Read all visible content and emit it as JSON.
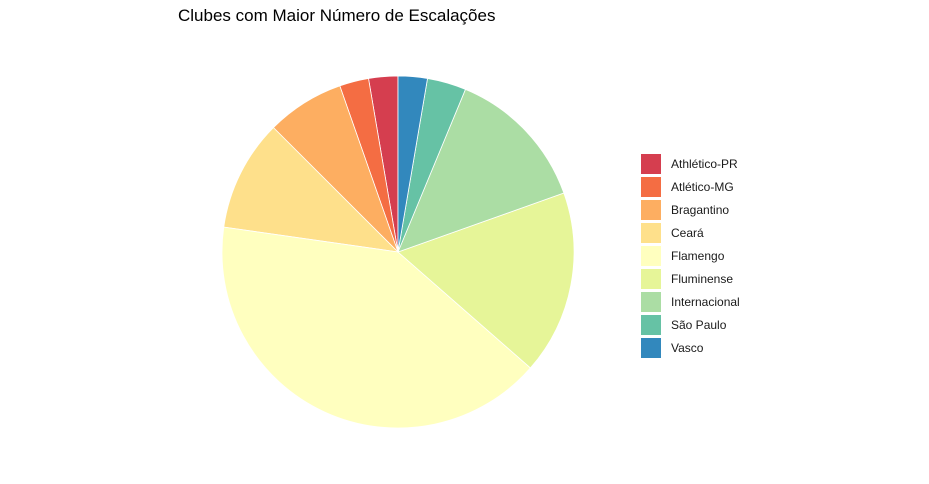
{
  "chart_data": {
    "type": "pie",
    "title": "Clubes com Maior Número de Escalações",
    "categories": [
      "Athlético-PR",
      "Atlético-MG",
      "Bragantino",
      "Ceará",
      "Flamengo",
      "Fluminense",
      "Internacional",
      "São Paulo",
      "Vasco"
    ],
    "values": [
      2.7,
      2.7,
      7.2,
      10.3,
      41.1,
      17.0,
      13.4,
      3.6,
      2.7
    ],
    "unit": "%",
    "colors": [
      "#D53E4F",
      "#F46D43",
      "#FDAE61",
      "#FEE08B",
      "#FFFFBF",
      "#E6F598",
      "#ABDDA4",
      "#66C2A5",
      "#3288BD"
    ],
    "start": "12 o'clock",
    "direction": "counterclockwise",
    "legend_position": "right",
    "grid": false
  }
}
